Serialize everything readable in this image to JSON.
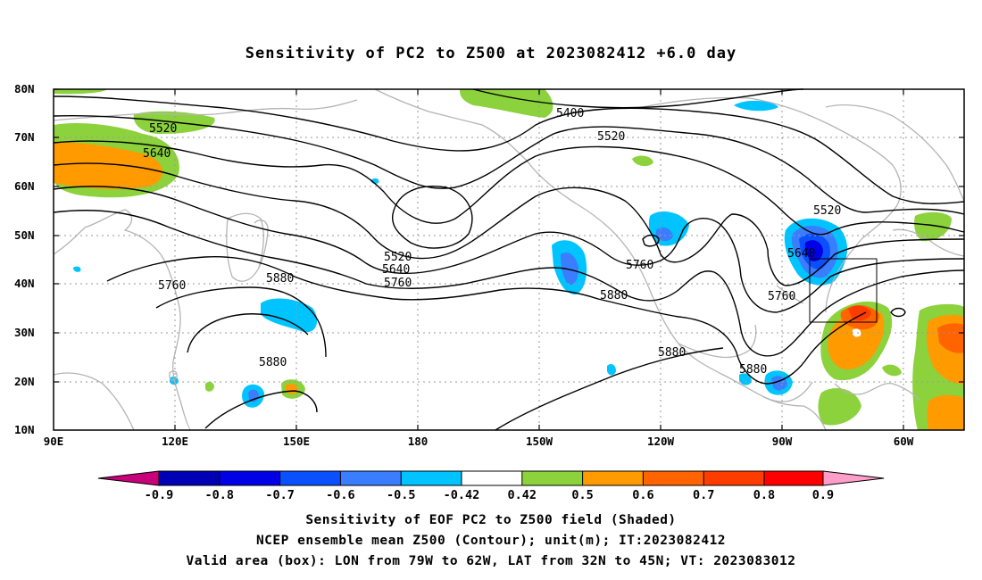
{
  "title": "Sensitivity of PC2 to Z500 at 2023082412 +6.0 day",
  "axes": {
    "lat_labels": [
      "80N",
      "70N",
      "60N",
      "50N",
      "40N",
      "30N",
      "20N",
      "10N"
    ],
    "lon_labels": [
      "90E",
      "120E",
      "150E",
      "180",
      "150W",
      "120W",
      "90W",
      "60W"
    ]
  },
  "contour_labels": [
    "5400",
    "5520",
    "5520",
    "5520",
    "5520",
    "5640",
    "5640",
    "5640",
    "5760",
    "5760",
    "5760",
    "5760",
    "5880",
    "5880",
    "5880",
    "5880",
    "5880"
  ],
  "colorbar": {
    "labels": [
      "-0.9",
      "-0.8",
      "-0.7",
      "-0.6",
      "-0.5",
      "-0.42",
      "0.42",
      "0.5",
      "0.6",
      "0.7",
      "0.8",
      "0.9"
    ],
    "colors": [
      "#c8007a",
      "#0000b4",
      "#0000e6",
      "#0a50ff",
      "#3a7dff",
      "#00c4ff",
      "#ffffff",
      "#8cd23c",
      "#ff9a00",
      "#ff6400",
      "#ff3c00",
      "#ff0000",
      "#ff9ec8"
    ]
  },
  "valid_box": {
    "lon_w": -79,
    "lon_e": -62,
    "lat_s": 32,
    "lat_n": 45
  },
  "captions": [
    "Sensitivity of EOF PC2 to Z500 field (Shaded)",
    "NCEP ensemble mean Z500 (Contour); unit(m); IT:2023082412",
    "Valid area (box): LON from 79W to 62W, LAT from 32N to 45N; VT: 2023083012"
  ]
}
